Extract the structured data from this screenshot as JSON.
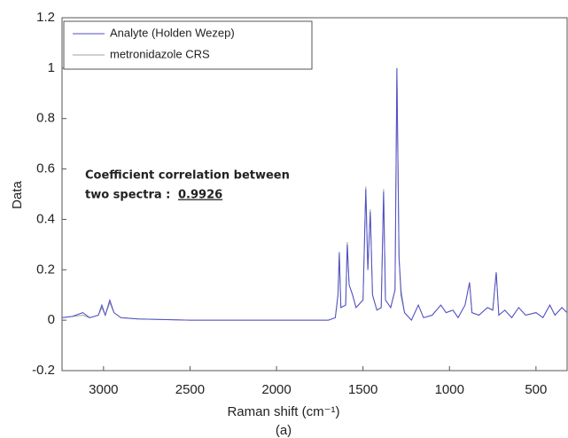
{
  "chart_data": {
    "type": "line",
    "x_label": "Raman shift (cm⁻¹)",
    "y_label": "Data",
    "caption": "(a)",
    "annotation_lines": [
      "Coefficient correlation between",
      "two spectra :"
    ],
    "annotation_value": 0.9926,
    "legend": "upper left",
    "xlim": [
      3240,
      320
    ],
    "ylim": [
      -0.2,
      1.2
    ],
    "xticks": [
      3000,
      2500,
      2000,
      1500,
      1000,
      500
    ],
    "yticks": [
      -0.2,
      0,
      0.2,
      0.4,
      0.6,
      0.8,
      1,
      1.2
    ],
    "x": [
      3240,
      3180,
      3120,
      3080,
      3030,
      3010,
      2990,
      2964,
      2940,
      2900,
      2800,
      2500,
      2000,
      1700,
      1660,
      1645,
      1637,
      1628,
      1600,
      1591,
      1580,
      1560,
      1540,
      1500,
      1484,
      1472,
      1458,
      1445,
      1420,
      1395,
      1381,
      1370,
      1340,
      1315,
      1304,
      1292,
      1280,
      1260,
      1220,
      1180,
      1150,
      1100,
      1050,
      1020,
      980,
      950,
      910,
      884,
      870,
      830,
      780,
      750,
      730,
      715,
      680,
      640,
      600,
      560,
      500,
      460,
      420,
      390,
      350,
      320
    ],
    "series": [
      {
        "name": "Analyte (Holden Wezep)",
        "color": "#4f4fc8",
        "values": [
          0.01,
          0.015,
          0.03,
          0.01,
          0.02,
          0.06,
          0.02,
          0.08,
          0.03,
          0.01,
          0.005,
          0,
          0,
          0,
          0.01,
          0.1,
          0.27,
          0.05,
          0.06,
          0.3,
          0.14,
          0.1,
          0.05,
          0.08,
          0.52,
          0.2,
          0.43,
          0.1,
          0.04,
          0.05,
          0.51,
          0.08,
          0.05,
          0.12,
          1.0,
          0.25,
          0.1,
          0.03,
          0,
          0.06,
          0.01,
          0.02,
          0.06,
          0.03,
          0.04,
          0.01,
          0.06,
          0.15,
          0.03,
          0.02,
          0.05,
          0.04,
          0.19,
          0.02,
          0.04,
          0.01,
          0.05,
          0.02,
          0.03,
          0.01,
          0.06,
          0.02,
          0.05,
          0.03
        ]
      },
      {
        "name": "metronidazole CRS",
        "color": "#a0a0a0",
        "values": [
          0.01,
          0.015,
          0.02,
          0.01,
          0.02,
          0.05,
          0.02,
          0.07,
          0.03,
          0.01,
          0.005,
          0,
          0,
          0,
          0.01,
          0.1,
          0.26,
          0.05,
          0.06,
          0.31,
          0.14,
          0.1,
          0.05,
          0.08,
          0.53,
          0.2,
          0.44,
          0.1,
          0.04,
          0.05,
          0.52,
          0.08,
          0.05,
          0.12,
          1.0,
          0.25,
          0.12,
          0.03,
          0,
          0.06,
          0.01,
          0.02,
          0.06,
          0.03,
          0.04,
          0.01,
          0.06,
          0.15,
          0.03,
          0.02,
          0.05,
          0.04,
          0.19,
          0.02,
          0.04,
          0.01,
          0.05,
          0.02,
          0.03,
          0.01,
          0.06,
          0.02,
          0.05,
          0.03
        ]
      }
    ]
  }
}
